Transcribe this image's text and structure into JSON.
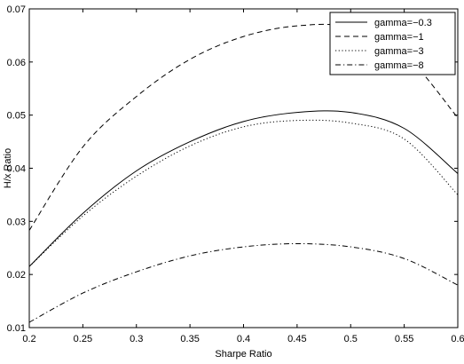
{
  "chart_data": {
    "type": "line",
    "title": "",
    "xlabel": "Sharpe Ratio",
    "ylabel": "H/x Ratio",
    "xlim": [
      0.2,
      0.6
    ],
    "ylim": [
      0.01,
      0.07
    ],
    "xticks": [
      "0.2",
      "0.25",
      "0.3",
      "0.35",
      "0.4",
      "0.45",
      "0.5",
      "0.55",
      "0.6"
    ],
    "yticks": [
      "0.01",
      "0.02",
      "0.03",
      "0.04",
      "0.05",
      "0.06",
      "0.07"
    ],
    "grid": false,
    "legend_position": "top-right",
    "x": [
      0.2,
      0.25,
      0.3,
      0.35,
      0.4,
      0.45,
      0.5,
      0.55,
      0.6
    ],
    "series": [
      {
        "name": "gamma=−0.3",
        "style": "solid",
        "values": [
          0.0215,
          0.0315,
          0.0395,
          0.045,
          0.0488,
          0.0505,
          0.0505,
          0.0475,
          0.039
        ]
      },
      {
        "name": "gamma=−1",
        "style": "dashed",
        "values": [
          0.0283,
          0.044,
          0.0535,
          0.0605,
          0.0648,
          0.0668,
          0.0665,
          0.0615,
          0.0495
        ]
      },
      {
        "name": "gamma=−3",
        "style": "dotted",
        "values": [
          0.0215,
          0.031,
          0.0385,
          0.0442,
          0.0478,
          0.049,
          0.0485,
          0.0455,
          0.035
        ]
      },
      {
        "name": "gamma=−8",
        "style": "dashdot",
        "values": [
          0.011,
          0.0165,
          0.0205,
          0.0235,
          0.0252,
          0.0258,
          0.0252,
          0.023,
          0.018
        ]
      }
    ]
  }
}
